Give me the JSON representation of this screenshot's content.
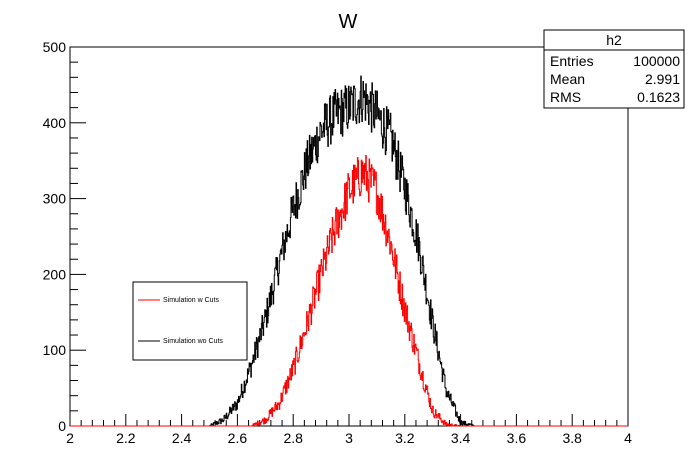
{
  "chart_data": {
    "type": "line",
    "title": "W",
    "xlabel": "",
    "ylabel": "",
    "xlim": [
      2,
      4
    ],
    "ylim": [
      0,
      500
    ],
    "x_ticks": [
      "2",
      "2.2",
      "2.4",
      "2.6",
      "2.8",
      "3",
      "3.2",
      "3.4",
      "3.6",
      "3.8",
      "4"
    ],
    "y_ticks": [
      "0",
      "100",
      "200",
      "300",
      "400",
      "500"
    ],
    "grid": false,
    "series": [
      {
        "name": "Simulation wo Cuts",
        "color": "#000000",
        "x": [
          2.5,
          2.55,
          2.6,
          2.65,
          2.7,
          2.75,
          2.8,
          2.85,
          2.9,
          2.95,
          3.0,
          3.05,
          3.1,
          3.15,
          3.2,
          3.25,
          3.3,
          3.35,
          3.4,
          3.45
        ],
        "y": [
          0,
          8,
          30,
          80,
          140,
          215,
          285,
          345,
          390,
          410,
          420,
          435,
          410,
          380,
          315,
          240,
          135,
          45,
          5,
          0
        ]
      },
      {
        "name": "Simulation w Cuts",
        "color": "#ff0000",
        "x": [
          2.65,
          2.7,
          2.75,
          2.8,
          2.85,
          2.9,
          2.95,
          3.0,
          3.05,
          3.1,
          3.15,
          3.2,
          3.25,
          3.3,
          3.35,
          3.4
        ],
        "y": [
          0,
          8,
          30,
          75,
          135,
          200,
          260,
          310,
          335,
          310,
          240,
          155,
          85,
          20,
          2,
          0
        ]
      }
    ],
    "legend": {
      "placement": "middle-left",
      "entries": [
        "Simulation w Cuts",
        "Simulation wo Cuts"
      ]
    },
    "stats_box": {
      "title": "h2",
      "rows": [
        {
          "label": "Entries",
          "value": "100000"
        },
        {
          "label": "Mean",
          "value": "2.991"
        },
        {
          "label": "RMS",
          "value": "0.1623"
        }
      ]
    }
  }
}
